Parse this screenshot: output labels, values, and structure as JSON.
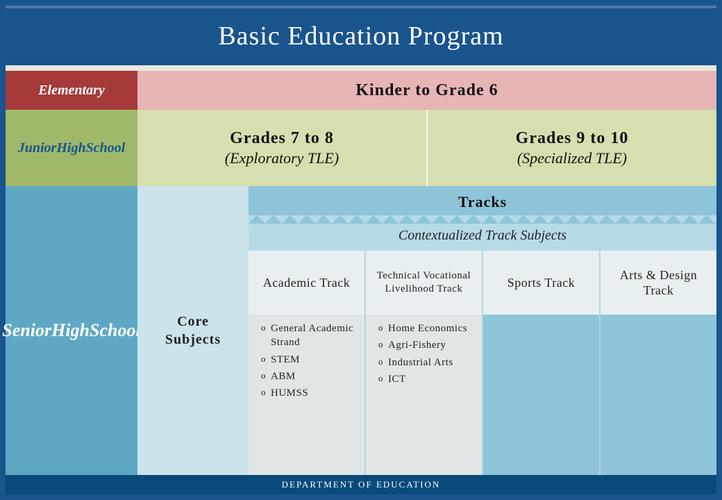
{
  "title": "Basic Education Program",
  "footer": "DEPARTMENT OF EDUCATION",
  "colors": {
    "frame_bg": "#19548c",
    "page_bg": "#f5f5f0",
    "elem_label_bg": "#a43a3a",
    "elem_content_bg": "#e8b5b5",
    "jhs_label_bg": "#a0b86a",
    "jhs_cell_bg": "#d5dfb0",
    "shs_label_bg": "#5fa8c4",
    "shs_area_bg": "#8ec5d8",
    "core_bg": "#cce3eb",
    "context_bg": "#b6dbe6",
    "trackname_bg": "#e8eff0",
    "trackitems_bg": "#e0e6e6",
    "footer_bg": "#0a4a7a"
  },
  "elementary": {
    "label": "Elementary",
    "content": "Kinder to Grade 6"
  },
  "jhs": {
    "label": "Junior\nHigh\nSchool",
    "cells": [
      {
        "main": "Grades 7 to 8",
        "sub": "(Exploratory TLE)"
      },
      {
        "main": "Grades 9 to 10",
        "sub": "(Specialized TLE)"
      }
    ]
  },
  "shs": {
    "label": "Senior\nHigh\nSchool",
    "core": "Core Subjects",
    "tracks_header": "Tracks",
    "context": "Contextualized Track Subjects",
    "tracks": [
      {
        "name": "Academic Track",
        "small": false,
        "items": [
          "General Academic Strand",
          "STEM",
          "ABM",
          "HUMSS"
        ]
      },
      {
        "name": "Technical Vocational Livelihood Track",
        "small": true,
        "items": [
          "Home Economics",
          "Agri-Fishery",
          "Industrial Arts",
          "ICT"
        ]
      },
      {
        "name": "Sports Track",
        "small": false,
        "items": []
      },
      {
        "name": "Arts & Design Track",
        "small": false,
        "items": []
      }
    ]
  }
}
